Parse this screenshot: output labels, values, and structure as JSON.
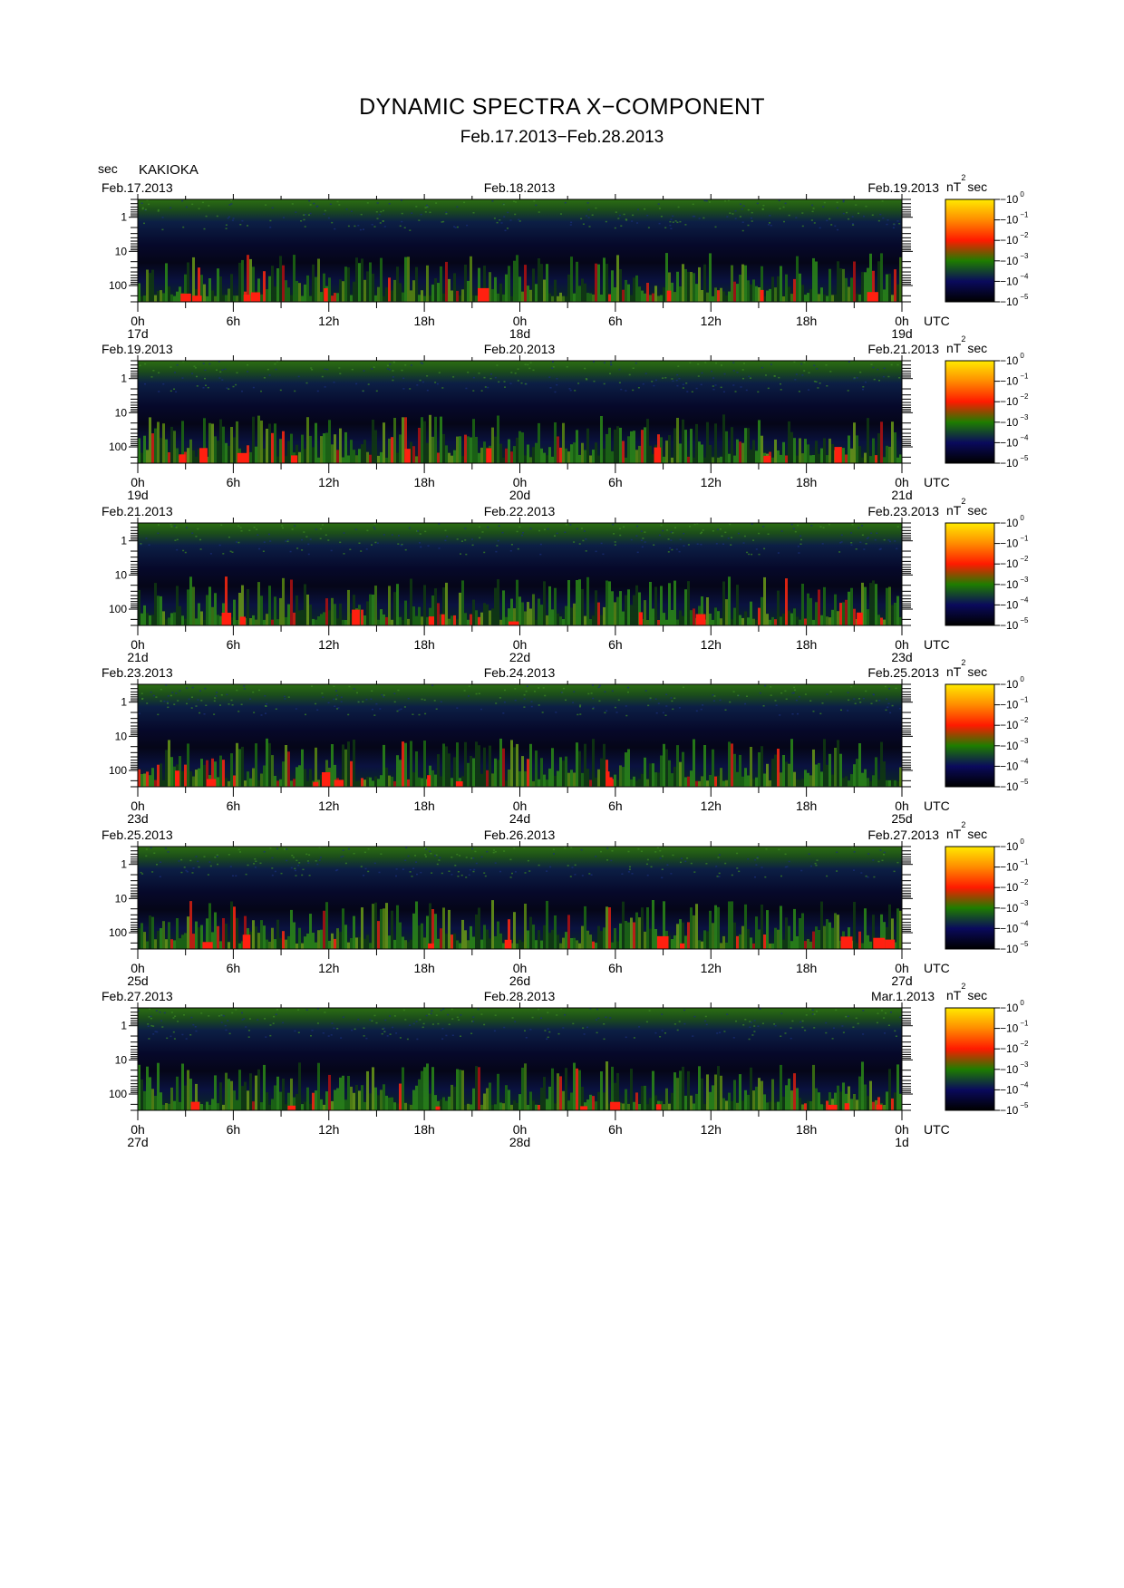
{
  "header": {
    "title": "DYNAMIC SPECTRA X−COMPONENT",
    "subtitle": "Feb.17.2013−Feb.28.2013",
    "unit": "sec",
    "station": "KAKIOKA"
  },
  "chart_data": {
    "type": "heatmap",
    "title": "DYNAMIC SPECTRA X−COMPONENT",
    "subtitle": "Feb.17.2013−Feb.28.2013",
    "station": "KAKIOKA",
    "ylabel": "sec",
    "y_scale": "log",
    "y_range_sec": [
      0.3,
      300
    ],
    "y_tick_labels": [
      "1",
      "10",
      "100"
    ],
    "x_tick_labels": [
      "0h",
      "6h",
      "12h",
      "18h",
      "0h",
      "6h",
      "12h",
      "18h",
      "0h"
    ],
    "x_unit": "UTC",
    "colorbar": {
      "label": "nT",
      "label_sup": "2",
      "label_suffix": "sec",
      "base": "10",
      "exponents": [
        "0",
        "−1",
        "−2",
        "−3",
        "−4",
        "−5"
      ],
      "colors": [
        "#ffea00",
        "#ff8c00",
        "#ff1a00",
        "#1e7d00",
        "#0a0a5c",
        "#000000"
      ]
    },
    "panels": [
      {
        "start_date": "Feb.17.2013",
        "mid_date": "Feb.18.2013",
        "end_date": "Feb.19.2013",
        "day_labels": [
          "17d",
          "18d",
          "19d"
        ]
      },
      {
        "start_date": "Feb.19.2013",
        "mid_date": "Feb.20.2013",
        "end_date": "Feb.21.2013",
        "day_labels": [
          "19d",
          "20d",
          "21d"
        ]
      },
      {
        "start_date": "Feb.21.2013",
        "mid_date": "Feb.22.2013",
        "end_date": "Feb.23.2013",
        "day_labels": [
          "21d",
          "22d",
          "23d"
        ]
      },
      {
        "start_date": "Feb.23.2013",
        "mid_date": "Feb.24.2013",
        "end_date": "Feb.25.2013",
        "day_labels": [
          "23d",
          "24d",
          "25d"
        ]
      },
      {
        "start_date": "Feb.25.2013",
        "mid_date": "Feb.26.2013",
        "end_date": "Feb.27.2013",
        "day_labels": [
          "25d",
          "26d",
          "27d"
        ]
      },
      {
        "start_date": "Feb.27.2013",
        "mid_date": "Feb.28.2013",
        "end_date": "Mar.1.2013",
        "day_labels": [
          "27d",
          "28d",
          "1d"
        ]
      }
    ]
  }
}
